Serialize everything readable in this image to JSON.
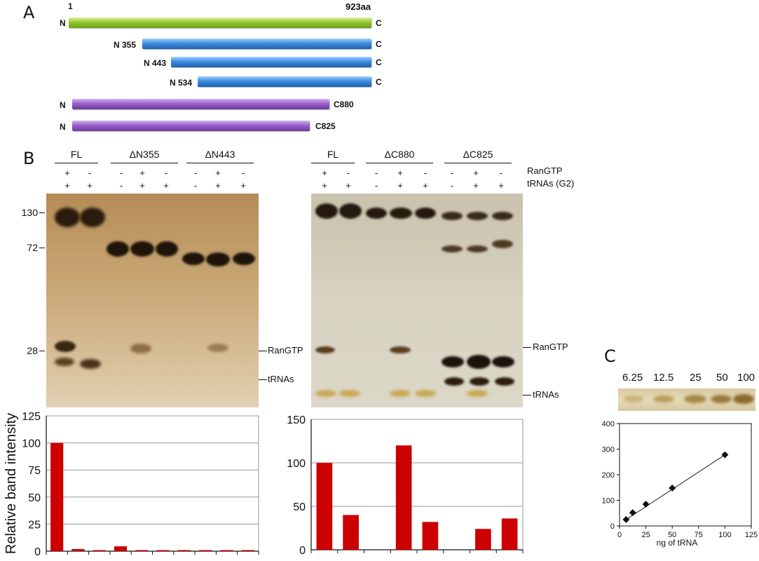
{
  "panelA": {
    "label": "A",
    "fl": {
      "n": "N",
      "c": "C",
      "start": "1",
      "end": "923aa"
    },
    "dn355": {
      "n": "N 355",
      "c": "C"
    },
    "dn443": {
      "n": "N 443",
      "c": "C"
    },
    "dn534": {
      "n": "N 534",
      "c": "C"
    },
    "dc880": {
      "n": "N",
      "c": "C880"
    },
    "dc825": {
      "n": "N",
      "c": "C825"
    },
    "colors": {
      "full_length": "#93c832",
      "n_truncations": "#3d8de0",
      "c_truncations": "#9a60cc"
    }
  },
  "panelB": {
    "label": "B",
    "left": {
      "groups": [
        "FL",
        "ΔN355",
        "ΔN443"
      ],
      "ranGTP": [
        "+",
        "-",
        "-",
        "+",
        "-",
        "-",
        "+",
        "-"
      ],
      "tRNA": [
        "+",
        "+",
        "-",
        "+",
        "+",
        "-",
        "+",
        "+"
      ],
      "mw": [
        "130",
        "72",
        "28"
      ],
      "band_labels": [
        "RanGTP",
        "tRNAs"
      ]
    },
    "right": {
      "groups": [
        "FL",
        "ΔC880",
        "ΔC825"
      ],
      "ranGTP": [
        "+",
        "-",
        "-",
        "+",
        "-",
        "-",
        "+",
        "-"
      ],
      "tRNA": [
        "+",
        "+",
        "-",
        "+",
        "+",
        "-",
        "+",
        "+"
      ],
      "row_labels": [
        "RanGTP",
        "tRNAs (G2)"
      ],
      "band_labels": [
        "RanGTP",
        "tRNAs"
      ]
    }
  },
  "chart_data": [
    {
      "type": "bar",
      "ylabel": "Relative band intensity",
      "ylim": [
        0,
        125
      ],
      "yticks": [
        0,
        25,
        50,
        75,
        100,
        125
      ],
      "values": [
        100,
        2,
        1,
        4.5,
        1,
        1,
        1,
        1,
        1,
        1
      ],
      "color": "#cc0000",
      "grid": true
    },
    {
      "type": "bar",
      "ylim": [
        0,
        150
      ],
      "yticks": [
        0,
        50,
        100,
        150
      ],
      "values": [
        100,
        40,
        0,
        120,
        32,
        0,
        24,
        36
      ],
      "color": "#cc0000",
      "grid": true
    },
    {
      "type": "scatter",
      "xlabel": "ng of tRNA",
      "xlim": [
        0,
        125
      ],
      "ylim": [
        0,
        400
      ],
      "xticks": [
        0,
        25,
        50,
        75,
        100,
        125
      ],
      "yticks": [
        0,
        100,
        200,
        300,
        400
      ],
      "x": [
        6.25,
        12.5,
        25,
        50,
        100
      ],
      "y": [
        25,
        52,
        85,
        148,
        278
      ],
      "trendline": true
    }
  ],
  "panelC": {
    "label": "C",
    "lanes": [
      "6.25",
      "12.5",
      "25",
      "50",
      "100"
    ]
  }
}
